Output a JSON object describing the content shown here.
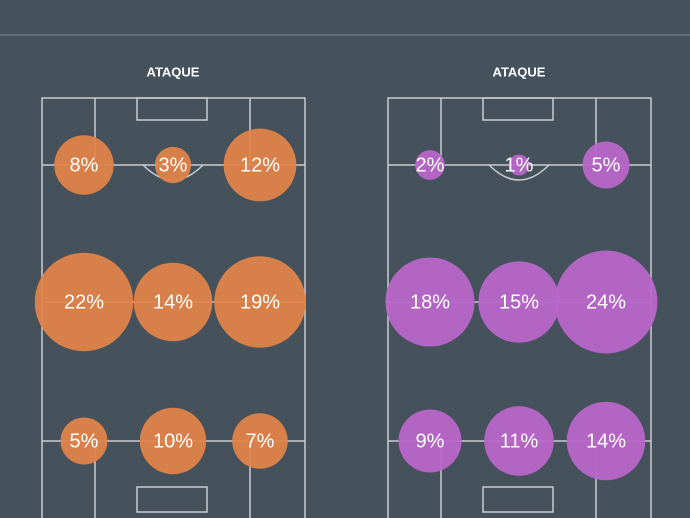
{
  "chart_data": [
    {
      "type": "bubble",
      "title": "ATAQUE",
      "color": "#e0834a",
      "values": [
        8,
        3,
        12,
        22,
        14,
        19,
        5,
        10,
        7
      ],
      "value_labels": [
        "8%",
        "3%",
        "12%",
        "22%",
        "14%",
        "19%",
        "5%",
        "10%",
        "7%"
      ]
    },
    {
      "type": "bubble",
      "title": "ATAQUE",
      "color": "#b866c9",
      "values": [
        2,
        1,
        5,
        18,
        15,
        24,
        9,
        11,
        14
      ],
      "value_labels": [
        "2%",
        "1%",
        "5%",
        "18%",
        "15%",
        "24%",
        "9%",
        "11%",
        "14%"
      ]
    }
  ]
}
